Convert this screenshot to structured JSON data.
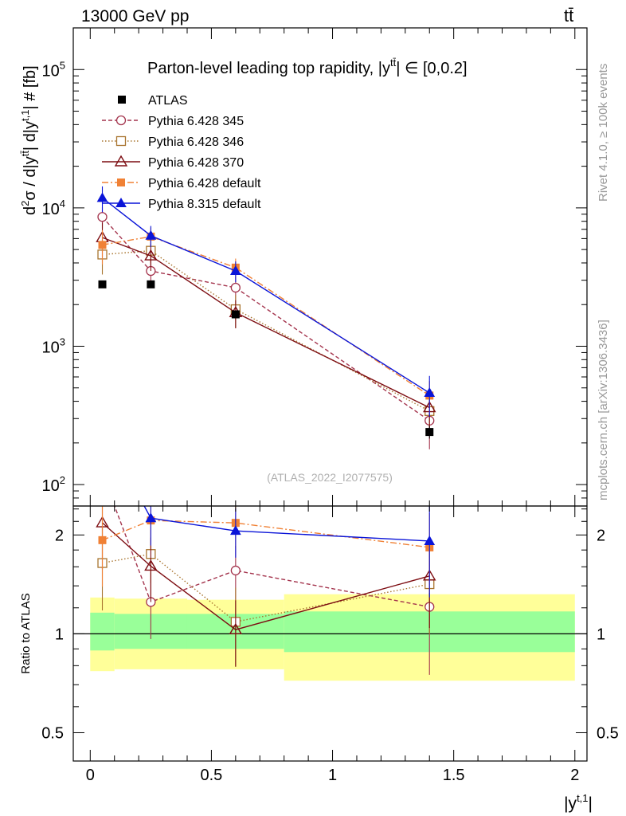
{
  "header": {
    "energy_label": "13000 GeV pp",
    "process_label": "tt̄"
  },
  "side_labels": {
    "rivet": "Rivet 4.1.0, ≥ 100k events",
    "mcplots": "mcplots.cern.ch [arXiv:1306.3436]"
  },
  "chart_data": {
    "type": "line",
    "title": "Parton-level leading top rapidity, |y^tt̄| ∈ [0,0.2]",
    "title_parts": {
      "main": "Parton-level leading top rapidity, |y",
      "sup": "tt̄",
      "tail": "| ∈ [0,0.2]"
    },
    "analysis_tag": "(ATLAS_2022_I2077575)",
    "ylabel": "d²σ / d|y^tt̄| d|y^t,1| # [fb]",
    "ylabel_parts": {
      "a": "d",
      "a_sup": "2",
      "b": "σ / d|y",
      "b_sup": "tt̄",
      "c": "| d|y",
      "c_sup": "t,1",
      "d": "| # [fb]"
    },
    "xlabel": "|y^t,1|",
    "xlabel_parts": {
      "main": "|y",
      "sup": "t,1",
      "tail": "|"
    },
    "ratio_ylabel": "Ratio to ATLAS",
    "xlim": [
      -0.07,
      2.05
    ],
    "ylim": [
      70,
      200000
    ],
    "ratio_ylim": [
      0.41,
      2.45
    ],
    "yscale": "log",
    "x_ticks": [
      0,
      0.5,
      1,
      1.5,
      2
    ],
    "x_tick_labels": [
      "0",
      "0.5",
      "1",
      "1.5",
      "2"
    ],
    "y_major_ticks": [
      100,
      1000,
      10000,
      100000
    ],
    "y_tick_labels": [
      {
        "base": "10",
        "exp": "2"
      },
      {
        "base": "10",
        "exp": "3"
      },
      {
        "base": "10",
        "exp": "4"
      },
      {
        "base": "10",
        "exp": "5"
      }
    ],
    "ratio_ticks": [
      0.5,
      1,
      2
    ],
    "ratio_tick_labels": [
      "0.5",
      "1",
      "2"
    ],
    "x": [
      0.05,
      0.25,
      0.6,
      1.4
    ],
    "bin_edges": [
      0,
      0.1,
      0.4,
      0.8,
      2.0
    ],
    "data": {
      "name": "ATLAS",
      "values": [
        2800,
        2800,
        1700,
        240
      ],
      "errors": [
        120,
        120,
        110,
        25
      ]
    },
    "band_inner": [
      [
        0.89,
        1.16
      ],
      [
        0.9,
        1.15
      ],
      [
        0.9,
        1.15
      ],
      [
        0.88,
        1.17
      ]
    ],
    "band_outer": [
      [
        0.77,
        1.29
      ],
      [
        0.78,
        1.28
      ],
      [
        0.78,
        1.27
      ],
      [
        0.72,
        1.32
      ]
    ],
    "series": [
      {
        "name": "Pythia 6.428 345",
        "color": "#a4344d",
        "dash": "5,3",
        "marker": "circle-open",
        "values": [
          8600,
          3500,
          2650,
          290
        ],
        "errors": [
          1500,
          800,
          500,
          110
        ]
      },
      {
        "name": "Pythia 6.428 346",
        "color": "#a8742e",
        "dash": "1.5,2.5",
        "marker": "square-open",
        "values": [
          4600,
          4900,
          1850,
          340
        ],
        "errors": [
          1300,
          900,
          500,
          100
        ]
      },
      {
        "name": "Pythia 6.428 370",
        "color": "#7d0d12",
        "dash": "",
        "marker": "triangle-open",
        "values": [
          6100,
          4500,
          1750,
          360
        ],
        "errors": [
          1700,
          1000,
          400,
          110
        ]
      },
      {
        "name": "Pythia 6.428 default",
        "color": "#f08135",
        "dash": "8,3,2,3",
        "marker": "square-filled",
        "values": [
          5400,
          6200,
          3700,
          440
        ],
        "errors": [
          1500,
          1000,
          600,
          120
        ]
      },
      {
        "name": "Pythia 8.315 default",
        "color": "#0a14d8",
        "dash": "",
        "marker": "triangle-filled",
        "values": [
          11800,
          6300,
          3500,
          460
        ],
        "errors": [
          2500,
          1100,
          600,
          150
        ]
      }
    ]
  }
}
